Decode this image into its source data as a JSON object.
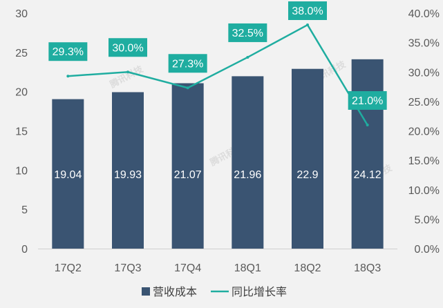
{
  "chart_data": {
    "type": "bar+line",
    "categories": [
      "17Q2",
      "17Q3",
      "17Q4",
      "18Q1",
      "18Q2",
      "18Q3"
    ],
    "series": [
      {
        "name": "营收成本",
        "type": "bar",
        "axis": "left",
        "color": "#3a5472",
        "values": [
          19.04,
          19.93,
          21.07,
          21.96,
          22.9,
          24.12
        ],
        "labels": [
          "19.04",
          "19.93",
          "21.07",
          "21.96",
          "22.9",
          "24.12"
        ]
      },
      {
        "name": "同比增长率",
        "type": "line",
        "axis": "right",
        "color": "#1fada0",
        "values": [
          29.3,
          30.0,
          27.3,
          32.5,
          38.0,
          21.0
        ],
        "labels": [
          "29.3%",
          "30.0%",
          "27.3%",
          "32.5%",
          "38.0%",
          "21.0%"
        ]
      }
    ],
    "y_left": {
      "min": 0,
      "max": 30,
      "ticks": [
        "0",
        "5",
        "10",
        "15",
        "20",
        "25",
        "30"
      ]
    },
    "y_right": {
      "min": 0,
      "max": 40,
      "ticks": [
        "0.0%",
        "5.0%",
        "10.0%",
        "15.0%",
        "20.0%",
        "25.0%",
        "30.0%",
        "35.0%",
        "40.0%"
      ]
    },
    "legend": {
      "position": "bottom",
      "items": [
        "营收成本",
        "同比增长率"
      ]
    },
    "watermark": "腾讯科技",
    "grid": false
  }
}
